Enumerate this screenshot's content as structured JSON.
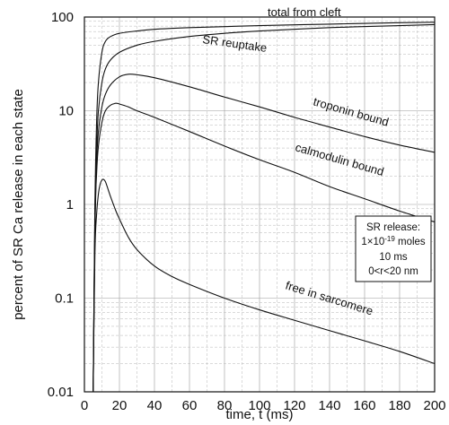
{
  "chart_data": {
    "type": "line",
    "title": "",
    "xlabel": "time, t  (ms)",
    "ylabel": "percent of SR Ca release in each state",
    "xlim": [
      0,
      200
    ],
    "ylim": [
      0.01,
      100
    ],
    "yscale": "log",
    "grid": true,
    "x_ticks": [
      "0",
      "20",
      "40",
      "60",
      "80",
      "100",
      "120",
      "140",
      "160",
      "180",
      "200"
    ],
    "y_ticks": [
      "0.01",
      "0.1",
      "1",
      "10",
      "100"
    ],
    "series": [
      {
        "name": "total from cleft",
        "x": [
          5,
          6,
          7,
          8,
          10,
          12,
          15,
          20,
          30,
          40,
          60,
          80,
          100,
          140,
          180,
          200
        ],
        "y": [
          0.01,
          1,
          8,
          20,
          42,
          55,
          62,
          67,
          71,
          74,
          77,
          79,
          81,
          84,
          87,
          88
        ]
      },
      {
        "name": "SR reuptake",
        "x": [
          5,
          6,
          7,
          8,
          10,
          12,
          15,
          20,
          30,
          40,
          60,
          80,
          100,
          140,
          180,
          200
        ],
        "y": [
          0.01,
          0.5,
          4,
          10,
          20,
          28,
          35,
          42,
          50,
          55,
          62,
          67,
          71,
          77,
          81,
          83
        ]
      },
      {
        "name": "troponin bound",
        "x": [
          5,
          6,
          7,
          8,
          10,
          12,
          15,
          20,
          25,
          30,
          40,
          60,
          80,
          100,
          120,
          140,
          160,
          180,
          200
        ],
        "y": [
          0.01,
          0.8,
          3,
          6,
          11,
          15,
          19,
          23,
          24.5,
          24.2,
          22.5,
          18,
          14,
          11,
          8.5,
          6.7,
          5.3,
          4.3,
          3.6
        ]
      },
      {
        "name": "calmodulin bound",
        "x": [
          5,
          6,
          7,
          8,
          10,
          12,
          15,
          18,
          20,
          25,
          30,
          40,
          60,
          80,
          100,
          120,
          140,
          160,
          180,
          200
        ],
        "y": [
          0.01,
          0.6,
          2.2,
          4.2,
          7.5,
          10,
          11.5,
          12,
          11.8,
          11,
          10,
          8.5,
          6,
          4.2,
          3,
          2.2,
          1.55,
          1.15,
          0.85,
          0.65
        ]
      },
      {
        "name": "free in sarcomere",
        "x": [
          5,
          6,
          7,
          8,
          9,
          10,
          11,
          12,
          13,
          15,
          18,
          20,
          25,
          30,
          40,
          50,
          60,
          80,
          100,
          120,
          140,
          160,
          180,
          200
        ],
        "y": [
          0.01,
          0.3,
          0.8,
          1.3,
          1.65,
          1.82,
          1.85,
          1.75,
          1.55,
          1.2,
          0.85,
          0.7,
          0.45,
          0.33,
          0.22,
          0.17,
          0.14,
          0.1,
          0.075,
          0.058,
          0.045,
          0.035,
          0.027,
          0.02
        ]
      }
    ],
    "annotation": {
      "line1": "SR release:",
      "line2_base": "1×10",
      "line2_exp": "-19",
      "line2_rest": " moles",
      "line3": "10 ms",
      "line4": "0<r<20 nm"
    }
  }
}
